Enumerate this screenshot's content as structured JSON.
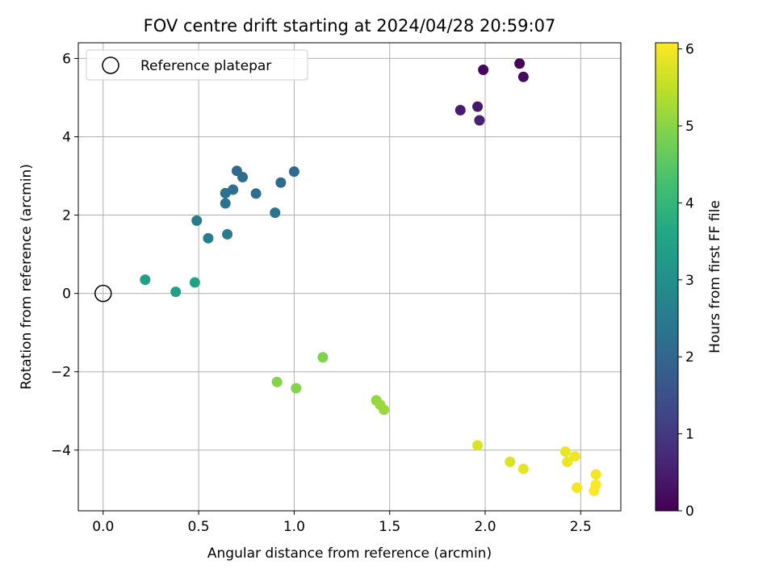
{
  "chart_data": {
    "type": "scatter",
    "title": "FOV centre drift starting at 2024/04/28 20:59:07",
    "xlabel": "Angular distance from reference (arcmin)",
    "ylabel": "Rotation from reference (arcmin)",
    "xlim": [
      -0.13,
      2.71
    ],
    "ylim": [
      -5.55,
      6.4
    ],
    "x_ticks": [
      0.0,
      0.5,
      1.0,
      1.5,
      2.0,
      2.5
    ],
    "x_tick_labels": [
      "0.0",
      "0.5",
      "1.0",
      "1.5",
      "2.0",
      "2.5"
    ],
    "y_ticks": [
      -4,
      -2,
      0,
      2,
      4,
      6
    ],
    "y_tick_labels": [
      "−4",
      "−2",
      "0",
      "2",
      "4",
      "6"
    ],
    "grid": true,
    "legend": {
      "position": "top-left",
      "entries": [
        "Reference platepar"
      ]
    },
    "reference_point": {
      "x": 0.0,
      "y": 0.0,
      "marker": "open-circle"
    },
    "colorbar": {
      "label": "Hours from first FF file",
      "colormap": "viridis",
      "range": [
        0,
        6.08
      ],
      "ticks": [
        0,
        1,
        2,
        3,
        4,
        5,
        6
      ],
      "tick_labels": [
        "0",
        "1",
        "2",
        "3",
        "4",
        "5",
        "6"
      ]
    },
    "points": [
      {
        "x": 2.18,
        "y": 5.87,
        "c": 0.05
      },
      {
        "x": 1.99,
        "y": 5.71,
        "c": 0.1
      },
      {
        "x": 2.2,
        "y": 5.53,
        "c": 0.2
      },
      {
        "x": 1.96,
        "y": 4.77,
        "c": 0.4
      },
      {
        "x": 1.87,
        "y": 4.68,
        "c": 0.5
      },
      {
        "x": 1.97,
        "y": 4.42,
        "c": 0.55
      },
      {
        "x": 0.7,
        "y": 3.13,
        "c": 2.1
      },
      {
        "x": 1.0,
        "y": 3.11,
        "c": 2.05
      },
      {
        "x": 0.73,
        "y": 2.97,
        "c": 2.15
      },
      {
        "x": 0.93,
        "y": 2.83,
        "c": 2.1
      },
      {
        "x": 0.68,
        "y": 2.65,
        "c": 2.2
      },
      {
        "x": 0.64,
        "y": 2.56,
        "c": 2.25
      },
      {
        "x": 0.8,
        "y": 2.55,
        "c": 2.2
      },
      {
        "x": 0.64,
        "y": 2.3,
        "c": 2.3
      },
      {
        "x": 0.9,
        "y": 2.06,
        "c": 2.3
      },
      {
        "x": 0.49,
        "y": 1.86,
        "c": 2.5
      },
      {
        "x": 0.65,
        "y": 1.51,
        "c": 2.5
      },
      {
        "x": 0.55,
        "y": 1.41,
        "c": 2.55
      },
      {
        "x": 0.22,
        "y": 0.35,
        "c": 3.4
      },
      {
        "x": 0.48,
        "y": 0.28,
        "c": 3.45
      },
      {
        "x": 0.38,
        "y": 0.04,
        "c": 3.4
      },
      {
        "x": 1.15,
        "y": -1.63,
        "c": 4.9
      },
      {
        "x": 0.91,
        "y": -2.26,
        "c": 4.95
      },
      {
        "x": 1.01,
        "y": -2.42,
        "c": 4.95
      },
      {
        "x": 1.43,
        "y": -2.73,
        "c": 5.1
      },
      {
        "x": 1.45,
        "y": -2.84,
        "c": 5.15
      },
      {
        "x": 1.47,
        "y": -2.97,
        "c": 5.15
      },
      {
        "x": 1.96,
        "y": -3.88,
        "c": 5.75
      },
      {
        "x": 2.42,
        "y": -4.04,
        "c": 5.9
      },
      {
        "x": 2.47,
        "y": -4.16,
        "c": 5.95
      },
      {
        "x": 2.43,
        "y": -4.3,
        "c": 5.9
      },
      {
        "x": 2.13,
        "y": -4.3,
        "c": 5.75
      },
      {
        "x": 2.2,
        "y": -4.48,
        "c": 5.85
      },
      {
        "x": 2.58,
        "y": -4.62,
        "c": 6.0
      },
      {
        "x": 2.58,
        "y": -4.88,
        "c": 6.05
      },
      {
        "x": 2.48,
        "y": -4.96,
        "c": 6.0
      },
      {
        "x": 2.57,
        "y": -5.04,
        "c": 6.05
      }
    ]
  }
}
